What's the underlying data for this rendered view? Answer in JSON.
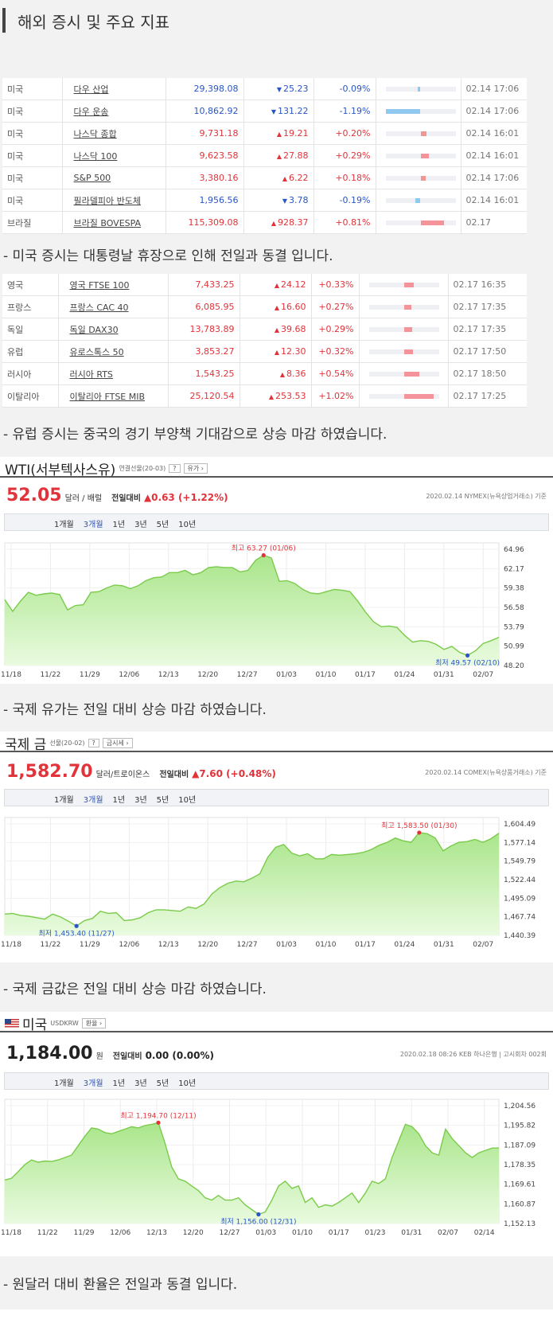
{
  "header": {
    "title": "해외 증시 및 주요 지표"
  },
  "us_table": [
    {
      "country": "미국",
      "name": "다우 산업",
      "value": "29,398.08",
      "dir": "dn",
      "change": "25.23",
      "pct": "-0.09%",
      "bar": 0.09,
      "date": "02.14 17:06"
    },
    {
      "country": "미국",
      "name": "다우 운송",
      "value": "10,862.92",
      "dir": "dn",
      "change": "131.22",
      "pct": "-1.19%",
      "bar": 1.19,
      "date": "02.14 17:06"
    },
    {
      "country": "미국",
      "name": "나스닥 종합",
      "value": "9,731.18",
      "dir": "up",
      "change": "19.21",
      "pct": "+0.20%",
      "bar": 0.2,
      "date": "02.14 16:01"
    },
    {
      "country": "미국",
      "name": "나스닥 100",
      "value": "9,623.58",
      "dir": "up",
      "change": "27.88",
      "pct": "+0.29%",
      "bar": 0.29,
      "date": "02.14 16:01"
    },
    {
      "country": "미국",
      "name": "S&P 500",
      "value": "3,380.16",
      "dir": "up",
      "change": "6.22",
      "pct": "+0.18%",
      "bar": 0.18,
      "date": "02.14 17:06"
    },
    {
      "country": "미국",
      "name": "필라델피아 반도체",
      "value": "1,956.56",
      "dir": "dn",
      "change": "3.78",
      "pct": "-0.19%",
      "bar": 0.19,
      "date": "02.14 16:01"
    },
    {
      "country": "브라질",
      "name": "브라질 BOVESPA",
      "value": "115,309.08",
      "dir": "up",
      "change": "928.37",
      "pct": "+0.81%",
      "bar": 0.81,
      "date": "02.17"
    }
  ],
  "note_us": "- 미국 증시는 대통령날 휴장으로 인해 전일과 동결 입니다.",
  "eu_table": [
    {
      "country": "영국",
      "name": "영국 FTSE 100",
      "value": "7,433.25",
      "dir": "up",
      "change": "24.12",
      "pct": "+0.33%",
      "bar": 0.33,
      "date": "02.17 16:35"
    },
    {
      "country": "프랑스",
      "name": "프랑스 CAC 40",
      "value": "6,085.95",
      "dir": "up",
      "change": "16.60",
      "pct": "+0.27%",
      "bar": 0.27,
      "date": "02.17 17:35"
    },
    {
      "country": "독일",
      "name": "독일 DAX30",
      "value": "13,783.89",
      "dir": "up",
      "change": "39.68",
      "pct": "+0.29%",
      "bar": 0.29,
      "date": "02.17 17:35"
    },
    {
      "country": "유럽",
      "name": "유로스톡스 50",
      "value": "3,853.27",
      "dir": "up",
      "change": "12.30",
      "pct": "+0.32%",
      "bar": 0.32,
      "date": "02.17 17:50"
    },
    {
      "country": "러시아",
      "name": "러시아 RTS",
      "value": "1,543.25",
      "dir": "up",
      "change": "8.36",
      "pct": "+0.54%",
      "bar": 0.54,
      "date": "02.17 18:50"
    },
    {
      "country": "이탈리아",
      "name": "이탈리아 FTSE MIB",
      "value": "25,120.54",
      "dir": "up",
      "change": "253.53",
      "pct": "+1.02%",
      "bar": 1.02,
      "date": "02.17 17:25"
    }
  ],
  "note_eu": "- 유럽 증시는 중국의 경기 부양책 기대감으로 상승 마감 하였습니다.",
  "note_oil": "- 국제 유가는 전일 대비 상승 마감 하였습니다.",
  "note_gold": "- 국제 금값은 전일 대비 상승 마감 하였습니다.",
  "note_fx": "- 원달러 대비 환율은 전일과 동결 입니다.",
  "colors": {
    "up": "#e2333a",
    "down": "#2a55c6",
    "area_fill": "#a9e58a",
    "line": "#7acb4b"
  },
  "chart_data": [
    {
      "type": "area",
      "title": "WTI(서부텍사스유)",
      "subtitle": "연결선물(20-03)",
      "button": "유가",
      "help": "?",
      "price": "52.05",
      "unit": "달러 / 배럴",
      "change_label": "전일대비",
      "change": "▲0.63 (+1.22%)",
      "source": "2020.02.14 NYMEX(뉴욕상업거래소) 기준",
      "tabs": [
        "1개월",
        "3개월",
        "1년",
        "3년",
        "5년",
        "10년"
      ],
      "active_tab": "3개월",
      "x_ticks": [
        "11/18",
        "11/22",
        "11/29",
        "12/06",
        "12/13",
        "12/20",
        "12/27",
        "01/03",
        "01/10",
        "01/17",
        "01/24",
        "01/31",
        "02/07"
      ],
      "y_ticks": [
        "64.96",
        "62.17",
        "59.38",
        "56.58",
        "53.79",
        "50.99",
        "48.20"
      ],
      "ylim": [
        48.2,
        64.96
      ],
      "high_label": "최고 63.27 (01/06)",
      "high": {
        "i": 33,
        "v": 63.27
      },
      "low_label": "최저 49.57 (02/10)",
      "low": {
        "i": 59,
        "v": 49.57
      },
      "values": [
        57.2,
        55.6,
        57.0,
        58.2,
        57.8,
        58.0,
        58.1,
        57.9,
        55.8,
        56.4,
        56.5,
        58.2,
        58.3,
        58.8,
        59.2,
        59.1,
        58.7,
        59.1,
        59.8,
        60.2,
        60.3,
        60.9,
        60.9,
        61.2,
        60.6,
        60.9,
        61.6,
        61.7,
        61.6,
        61.6,
        61.0,
        61.2,
        62.6,
        63.27,
        62.9,
        59.7,
        59.8,
        59.4,
        58.6,
        58.1,
        58.0,
        58.3,
        58.6,
        58.5,
        58.3,
        57.0,
        55.5,
        54.2,
        53.5,
        53.6,
        53.4,
        52.3,
        51.4,
        51.6,
        51.5,
        51.1,
        50.4,
        50.8,
        50.0,
        49.57,
        50.2,
        51.2,
        51.6,
        52.05
      ]
    },
    {
      "type": "area",
      "title": "국제 금",
      "subtitle": "선물(20-02)",
      "button": "금시세",
      "help": "?",
      "price": "1,582.70",
      "unit": "달러/트로이온스",
      "change_label": "전일대비",
      "change": "▲7.60 (+0.48%)",
      "source": "2020.02.14 COMEX(뉴욕상품거래소) 기준",
      "tabs": [
        "1개월",
        "3개월",
        "1년",
        "3년",
        "5년",
        "10년"
      ],
      "active_tab": "3개월",
      "x_ticks": [
        "11/18",
        "11/22",
        "11/29",
        "12/06",
        "12/13",
        "12/20",
        "12/27",
        "01/03",
        "01/10",
        "01/17",
        "01/24",
        "01/31",
        "02/07"
      ],
      "y_ticks": [
        "1,604.49",
        "1,577.14",
        "1,549.79",
        "1,522.44",
        "1,495.09",
        "1,467.74",
        "1,440.39"
      ],
      "ylim": [
        1440.39,
        1604.49
      ],
      "high_label": "최고 1,583.50 (01/30)",
      "high": {
        "i": 52,
        "v": 1583.5
      },
      "low_label": "최저 1,453.40 (11/27)",
      "low": {
        "i": 9,
        "v": 1453.4
      },
      "values": [
        1470,
        1471,
        1468,
        1467,
        1465,
        1463,
        1470,
        1466,
        1460,
        1453.4,
        1461,
        1464,
        1474,
        1471,
        1472,
        1461,
        1462,
        1465,
        1472,
        1476,
        1476,
        1475,
        1474,
        1480,
        1478,
        1484,
        1498,
        1507,
        1513,
        1516,
        1515,
        1520,
        1526,
        1549,
        1563,
        1567,
        1555,
        1551,
        1554,
        1547,
        1547,
        1553,
        1552,
        1553,
        1554,
        1556,
        1560,
        1566,
        1570,
        1576,
        1572,
        1570,
        1583.5,
        1582,
        1576,
        1558,
        1565,
        1570,
        1571,
        1574,
        1570,
        1575,
        1582.7
      ]
    },
    {
      "type": "area",
      "title": "미국",
      "subtitle": "USDKRW",
      "button": "환율",
      "price": "1,184.00",
      "unit": "원",
      "change_label": "전일대비",
      "change": "0.00 (0.00%)",
      "source": "2020.02.18 08:26 KEB 하나은행 | 고시회차 002회",
      "tabs": [
        "1개월",
        "3개월",
        "1년",
        "3년",
        "5년",
        "10년"
      ],
      "active_tab": "3개월",
      "x_ticks": [
        "11/18",
        "11/22",
        "11/29",
        "12/06",
        "12/13",
        "12/20",
        "12/27",
        "01/03",
        "01/10",
        "01/17",
        "01/23",
        "01/31",
        "02/07",
        "02/14"
      ],
      "y_ticks": [
        "1,204.56",
        "1,195.82",
        "1,187.09",
        "1,178.35",
        "1,169.61",
        "1,160.87",
        "1,152.13"
      ],
      "ylim": [
        1152.13,
        1204.56
      ],
      "high_label": "최고 1,194.70 (12/11)",
      "high": {
        "i": 23,
        "v": 1194.7
      },
      "low_label": "최저 1,156.00 (12/31)",
      "low": {
        "i": 38,
        "v": 1156.0
      },
      "values": [
        1170.5,
        1171.2,
        1174,
        1177,
        1179,
        1178,
        1178.5,
        1178.3,
        1179,
        1180,
        1181,
        1185,
        1189,
        1192.5,
        1192,
        1190.5,
        1190,
        1191,
        1192,
        1193,
        1192.5,
        1193.5,
        1194,
        1194.7,
        1186,
        1176,
        1171,
        1170,
        1168,
        1166,
        1163,
        1162,
        1164,
        1162,
        1162,
        1163,
        1160,
        1158,
        1156,
        1157,
        1162,
        1168,
        1170,
        1167,
        1168,
        1161,
        1163,
        1159,
        1160,
        1159.5,
        1161,
        1163,
        1165,
        1161,
        1165,
        1170,
        1169,
        1171,
        1180,
        1187,
        1194,
        1193,
        1190,
        1185,
        1182,
        1181,
        1192,
        1188,
        1185,
        1182,
        1180,
        1182,
        1183,
        1184,
        1184
      ]
    }
  ]
}
